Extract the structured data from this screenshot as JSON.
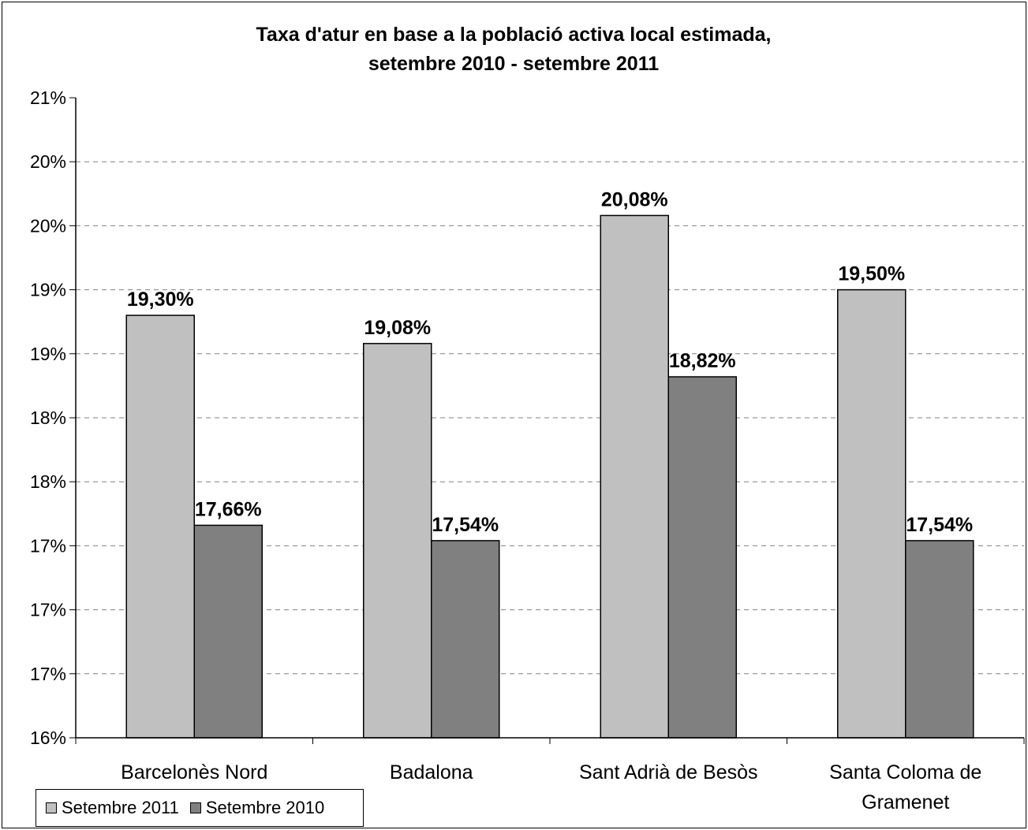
{
  "chart_data": {
    "type": "bar",
    "title": "Taxa d'atur en base a la població activa local estimada,",
    "subtitle": "setembre 2010 - setembre 2011",
    "xlabel": "",
    "ylabel": "",
    "categories": [
      "Barcelonès Nord",
      "Badalona",
      "Sant Adrià de Besòs",
      "Santa Coloma de Gramenet"
    ],
    "category_lines": [
      [
        "Barcelonès Nord"
      ],
      [
        "Badalona"
      ],
      [
        "Sant Adrià de Besòs"
      ],
      [
        "Santa Coloma de",
        "Gramenet"
      ]
    ],
    "series": [
      {
        "name": "Setembre 2011",
        "values": [
          19.3,
          19.08,
          20.08,
          19.5
        ],
        "labels": [
          "19,30%",
          "19,08%",
          "20,08%",
          "19,50%"
        ],
        "color": "#c0c0c0"
      },
      {
        "name": "Setembre 2010",
        "values": [
          17.66,
          17.54,
          18.82,
          17.54
        ],
        "labels": [
          "17,66%",
          "17,54%",
          "18,82%",
          "17,54%"
        ],
        "color": "#808080"
      }
    ],
    "ylim": [
      16,
      21
    ],
    "yticks": [
      16,
      16.5,
      17,
      17.5,
      18,
      18.5,
      19,
      19.5,
      20,
      20.5,
      21
    ],
    "ytick_labels": [
      "16%",
      "17%",
      "17%",
      "17%",
      "18%",
      "18%",
      "19%",
      "19%",
      "20%",
      "20%",
      "21%"
    ],
    "grid": true,
    "legend_position": "bottom-left"
  }
}
